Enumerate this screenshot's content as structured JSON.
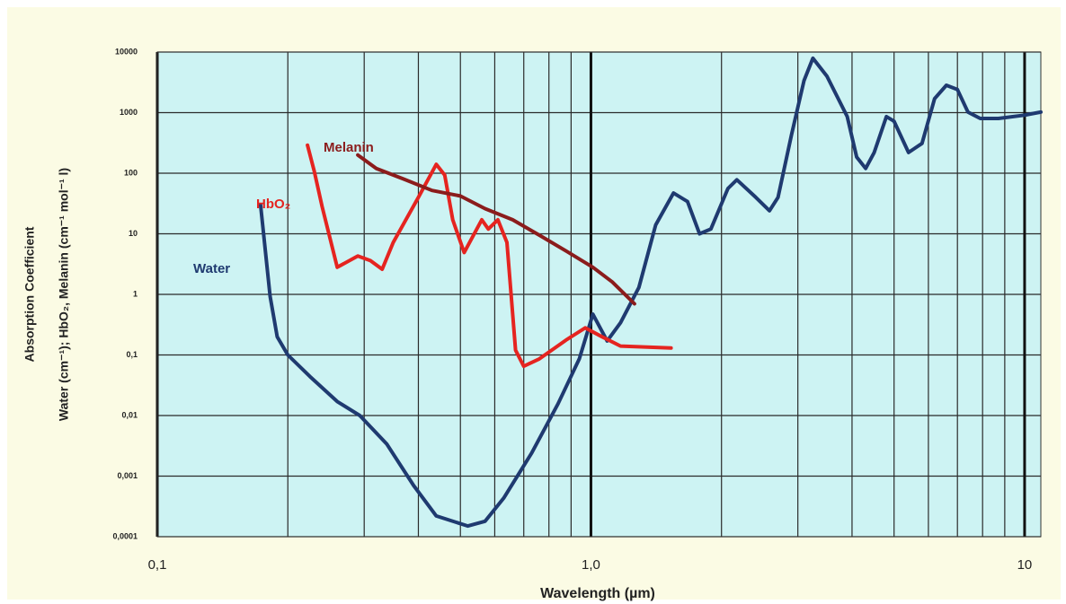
{
  "chart_data": {
    "type": "line",
    "xlabel": "Wavelength  (µm)",
    "ylabel": [
      "Absorption Coefficient",
      "Water (cm⁻¹); HbO₂, Melanin (cm⁻¹ mol⁻¹ l)"
    ],
    "xscale": "log",
    "yscale": "log",
    "grid": true,
    "xlim": [
      0.1,
      10.9
    ],
    "ylim": [
      0.0001,
      10000
    ],
    "xticks": [
      {
        "value": 0.1,
        "label": "0,1"
      },
      {
        "value": 1,
        "label": "1,0"
      },
      10
    ],
    "x_minor_ticks": [
      0.2,
      0.3,
      0.4,
      0.5,
      0.6,
      0.7,
      0.8,
      0.9,
      2,
      3,
      4,
      5,
      6,
      7,
      8,
      9
    ],
    "yticks": [
      {
        "value": 0.0001,
        "label": "0,0001"
      },
      {
        "value": 0.001,
        "label": "0,001"
      },
      {
        "value": 0.01,
        "label": "0,01"
      },
      {
        "value": 0.1,
        "label": "0,1"
      },
      1,
      10,
      100,
      1000,
      10000
    ],
    "series": [
      {
        "name": "Water",
        "color": "#1f3a70",
        "x": [
          0.173,
          0.182,
          0.189,
          0.2,
          0.225,
          0.26,
          0.293,
          0.338,
          0.39,
          0.44,
          0.52,
          0.57,
          0.63,
          0.73,
          0.84,
          0.94,
          1.01,
          1.09,
          1.17,
          1.29,
          1.41,
          1.55,
          1.67,
          1.78,
          1.89,
          2.07,
          2.17,
          2.4,
          2.58,
          2.7,
          2.9,
          3.1,
          3.25,
          3.5,
          3.9,
          4.1,
          4.3,
          4.5,
          4.8,
          5.0,
          5.4,
          5.8,
          6.2,
          6.6,
          7.0,
          7.4,
          7.9,
          8.7,
          10,
          10.9
        ],
        "values": [
          30,
          0.93,
          0.2,
          0.1,
          0.044,
          0.017,
          0.01,
          0.0034,
          0.0007,
          0.00022,
          0.00015,
          0.00018,
          0.00044,
          0.0024,
          0.0157,
          0.086,
          0.47,
          0.17,
          0.34,
          1.3,
          14,
          47,
          34,
          10,
          12,
          56,
          78,
          40,
          24,
          40,
          430,
          3370,
          7900,
          4000,
          860,
          185,
          120,
          220,
          860,
          720,
          220,
          310,
          1700,
          2830,
          2400,
          1020,
          800,
          800,
          910,
          1020
        ]
      },
      {
        "name": "HbO₂",
        "color": "#e52420",
        "x": [
          0.222,
          0.23,
          0.24,
          0.26,
          0.29,
          0.31,
          0.33,
          0.35,
          0.4,
          0.44,
          0.46,
          0.48,
          0.51,
          0.56,
          0.58,
          0.61,
          0.64,
          0.67,
          0.7,
          0.76,
          0.88,
          0.97,
          1.06,
          1.17,
          1.53
        ],
        "values": [
          290,
          110,
          28,
          2.8,
          4.3,
          3.6,
          2.6,
          7.2,
          40,
          140,
          93,
          17,
          4.9,
          17,
          12,
          17,
          7.2,
          0.12,
          0.065,
          0.086,
          0.18,
          0.28,
          0.2,
          0.14,
          0.13
        ]
      },
      {
        "name": "Melanin",
        "color": "#8b1c1c",
        "x": [
          0.29,
          0.32,
          0.37,
          0.43,
          0.5,
          0.57,
          0.66,
          0.76,
          0.88,
          1.01,
          1.12,
          1.26
        ],
        "values": [
          200,
          120,
          80,
          52,
          42,
          26,
          17,
          9.5,
          5.1,
          2.8,
          1.6,
          0.7
        ]
      }
    ]
  }
}
